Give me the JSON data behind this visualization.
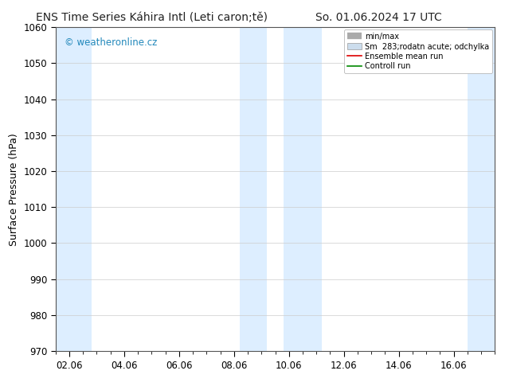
{
  "title_left": "ENS Time Series Káhira Intl (Leti caron;tě)",
  "title_right": "So. 01.06.2024 17 UTC",
  "ylabel": "Surface Pressure (hPa)",
  "ylim": [
    970,
    1060
  ],
  "yticks": [
    970,
    980,
    990,
    1000,
    1010,
    1020,
    1030,
    1040,
    1050,
    1060
  ],
  "xlabel_ticks": [
    "02.06",
    "04.06",
    "06.06",
    "08.06",
    "10.06",
    "12.06",
    "14.06",
    "16.06"
  ],
  "x_positions": [
    0,
    2,
    4,
    6,
    8,
    10,
    12,
    14
  ],
  "xlim": [
    -0.5,
    15.5
  ],
  "bg_color": "#ffffff",
  "plot_bg_color": "#ffffff",
  "shaded_bands": [
    {
      "x_start": -0.5,
      "x_end": 0.8,
      "color": "#ddeeff"
    },
    {
      "x_start": 6.2,
      "x_end": 7.2,
      "color": "#ddeeff"
    },
    {
      "x_start": 7.8,
      "x_end": 9.2,
      "color": "#ddeeff"
    },
    {
      "x_start": 14.5,
      "x_end": 15.5,
      "color": "#ddeeff"
    }
  ],
  "watermark_text": "© weatheronline.cz",
  "watermark_color": "#2288bb",
  "title_fontsize": 10,
  "tick_fontsize": 8.5,
  "ylabel_fontsize": 9
}
